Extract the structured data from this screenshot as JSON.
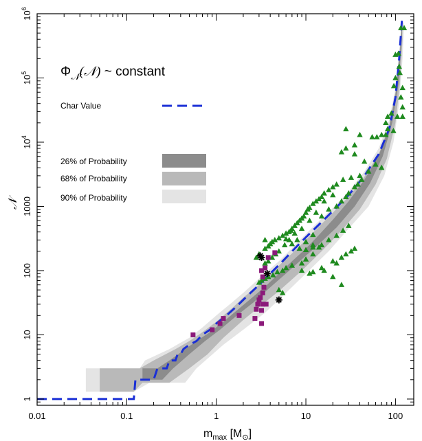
{
  "chart_data": {
    "type": "scatter",
    "title": "",
    "xlabel_main": "m",
    "xlabel_sub": "max",
    "xlabel_unit": "[M",
    "xlabel_unit_sub": "⊙",
    "xlabel_close": "]",
    "ylabel": "𝒩",
    "xscale": "log",
    "yscale": "log",
    "xlim": [
      0.01,
      160
    ],
    "ylim": [
      0.8,
      1000000
    ],
    "grid": false,
    "xticks": [
      {
        "value": 0.01,
        "label": "0.01"
      },
      {
        "value": 0.1,
        "label": "0.1"
      },
      {
        "value": 1,
        "label": "1"
      },
      {
        "value": 10,
        "label": "10"
      },
      {
        "value": 100,
        "label": "100"
      }
    ],
    "yticks": [
      {
        "value": 1,
        "label": "1",
        "sup": ""
      },
      {
        "value": 10,
        "label": "10",
        "sup": ""
      },
      {
        "value": 100,
        "label": "100",
        "sup": ""
      },
      {
        "value": 1000,
        "label": "1000",
        "sup": ""
      },
      {
        "value": 10000,
        "label": "10",
        "sup": "4"
      },
      {
        "value": 100000,
        "label": "10",
        "sup": "5"
      },
      {
        "value": 1000000,
        "label": "10",
        "sup": "6"
      }
    ],
    "annotation": {
      "phi": "Φ",
      "sub": "𝒩",
      "arg": "(𝒩)",
      "rest": " ~ constant"
    },
    "legend": {
      "char_value": "Char Value",
      "bands": [
        {
          "label": "26% of Probability",
          "color": "#8c8c8c"
        },
        {
          "label": "68% of Probability",
          "color": "#b9b9b9"
        },
        {
          "label": "90% of Probability",
          "color": "#e4e4e4"
        }
      ]
    },
    "colors": {
      "char_line": "#1a2fd6",
      "triangles": "#1f8a1f",
      "squares": "#8b1a7a",
      "stars": "#000000"
    },
    "char_value_curve": [
      [
        0.01,
        1
      ],
      [
        0.12,
        1
      ],
      [
        0.125,
        2
      ],
      [
        0.2,
        2
      ],
      [
        0.22,
        3
      ],
      [
        0.28,
        3
      ],
      [
        0.3,
        4
      ],
      [
        0.35,
        4
      ],
      [
        0.37,
        5
      ],
      [
        0.4,
        5
      ],
      [
        0.43,
        6
      ],
      [
        0.5,
        7
      ],
      [
        0.6,
        8
      ],
      [
        0.7,
        10
      ],
      [
        0.85,
        12
      ],
      [
        1,
        15
      ],
      [
        1.3,
        20
      ],
      [
        1.7,
        28
      ],
      [
        2.2,
        40
      ],
      [
        3,
        60
      ],
      [
        4,
        90
      ],
      [
        5.5,
        140
      ],
      [
        7.5,
        220
      ],
      [
        10,
        330
      ],
      [
        14,
        520
      ],
      [
        20,
        850
      ],
      [
        30,
        1500
      ],
      [
        45,
        3000
      ],
      [
        65,
        6500
      ],
      [
        85,
        16000
      ],
      [
        100,
        50000
      ],
      [
        110,
        200000
      ],
      [
        118,
        800000
      ]
    ],
    "band_90": [
      [
        0.035,
        3
      ],
      [
        0.14,
        3
      ],
      [
        0.16,
        4
      ],
      [
        0.3,
        6
      ],
      [
        0.5,
        9
      ],
      [
        0.7,
        13
      ],
      [
        1,
        20
      ],
      [
        1.5,
        32
      ],
      [
        2,
        45
      ],
      [
        3,
        75
      ],
      [
        5,
        140
      ],
      [
        8,
        270
      ],
      [
        12,
        480
      ],
      [
        20,
        950
      ],
      [
        30,
        1700
      ],
      [
        45,
        3500
      ],
      [
        65,
        8000
      ],
      [
        85,
        22000
      ],
      [
        100,
        70000
      ],
      [
        110,
        250000
      ],
      [
        118,
        800000
      ],
      [
        125,
        700000
      ],
      [
        120,
        200000
      ],
      [
        110,
        40000
      ],
      [
        95,
        10000
      ],
      [
        75,
        3000
      ],
      [
        50,
        1000
      ],
      [
        30,
        450
      ],
      [
        18,
        200
      ],
      [
        10,
        90
      ],
      [
        6,
        45
      ],
      [
        3.5,
        22
      ],
      [
        2,
        12
      ],
      [
        1.2,
        7
      ],
      [
        0.6,
        3
      ],
      [
        0.45,
        1.8
      ],
      [
        0.18,
        1.8
      ],
      [
        0.12,
        1.3
      ],
      [
        0.035,
        1.3
      ]
    ],
    "band_68": [
      [
        0.05,
        3
      ],
      [
        0.14,
        3
      ],
      [
        0.2,
        4
      ],
      [
        0.35,
        6
      ],
      [
        0.5,
        8
      ],
      [
        0.7,
        11
      ],
      [
        1,
        16
      ],
      [
        1.5,
        26
      ],
      [
        2,
        38
      ],
      [
        3,
        60
      ],
      [
        5,
        120
      ],
      [
        8,
        220
      ],
      [
        12,
        390
      ],
      [
        20,
        800
      ],
      [
        30,
        1400
      ],
      [
        45,
        2900
      ],
      [
        65,
        6500
      ],
      [
        85,
        18000
      ],
      [
        100,
        60000
      ],
      [
        112,
        300000
      ],
      [
        118,
        800000
      ],
      [
        120,
        400000
      ],
      [
        112,
        80000
      ],
      [
        100,
        20000
      ],
      [
        80,
        5500
      ],
      [
        60,
        2200
      ],
      [
        40,
        900
      ],
      [
        25,
        420
      ],
      [
        15,
        200
      ],
      [
        9,
        100
      ],
      [
        5,
        48
      ],
      [
        3,
        27
      ],
      [
        2,
        17
      ],
      [
        1.2,
        9
      ],
      [
        0.8,
        5
      ],
      [
        0.5,
        3
      ],
      [
        0.3,
        1.8
      ],
      [
        0.15,
        1.8
      ],
      [
        0.12,
        1.3
      ],
      [
        0.05,
        1.3
      ]
    ],
    "band_26": [
      [
        0.15,
        3
      ],
      [
        0.22,
        3
      ],
      [
        0.3,
        4
      ],
      [
        0.45,
        6
      ],
      [
        0.6,
        8
      ],
      [
        0.85,
        11
      ],
      [
        1.2,
        16
      ],
      [
        1.7,
        24
      ],
      [
        2.4,
        36
      ],
      [
        3.5,
        56
      ],
      [
        5,
        90
      ],
      [
        7,
        140
      ],
      [
        10,
        220
      ],
      [
        14,
        360
      ],
      [
        20,
        620
      ],
      [
        30,
        1200
      ],
      [
        45,
        2600
      ],
      [
        65,
        6200
      ],
      [
        85,
        17000
      ],
      [
        100,
        55000
      ],
      [
        112,
        250000
      ],
      [
        118,
        800000
      ],
      [
        119,
        500000
      ],
      [
        108,
        80000
      ],
      [
        92,
        20000
      ],
      [
        72,
        6000
      ],
      [
        52,
        2300
      ],
      [
        35,
        1000
      ],
      [
        22,
        470
      ],
      [
        14,
        260
      ],
      [
        9,
        150
      ],
      [
        6,
        90
      ],
      [
        4,
        55
      ],
      [
        2.6,
        32
      ],
      [
        1.7,
        20
      ],
      [
        1.1,
        12
      ],
      [
        0.75,
        8
      ],
      [
        0.5,
        5
      ],
      [
        0.33,
        3
      ],
      [
        0.25,
        2
      ],
      [
        0.15,
        2
      ]
    ],
    "series": [
      {
        "name": "",
        "marker": "triangle",
        "color": "#1f8a1f",
        "points": [
          [
            115,
            600000
          ],
          [
            125,
            600000
          ],
          [
            100,
            230000
          ],
          [
            108,
            240000
          ],
          [
            110,
            150000
          ],
          [
            112,
            120000
          ],
          [
            100,
            100000
          ],
          [
            96,
            75000
          ],
          [
            120,
            70000
          ],
          [
            115,
            50000
          ],
          [
            120,
            35000
          ],
          [
            120,
            25000
          ],
          [
            105,
            25000
          ],
          [
            90,
            28000
          ],
          [
            82,
            25000
          ],
          [
            78,
            20000
          ],
          [
            82,
            16000
          ],
          [
            95,
            15000
          ],
          [
            78,
            13000
          ],
          [
            70,
            13000
          ],
          [
            62,
            12000
          ],
          [
            55,
            12000
          ],
          [
            40,
            13000
          ],
          [
            28,
            16000
          ],
          [
            35,
            9000
          ],
          [
            28,
            8000
          ],
          [
            25,
            7000
          ],
          [
            35,
            6500
          ],
          [
            45,
            5000
          ],
          [
            60,
            4500
          ],
          [
            70,
            4000
          ],
          [
            50,
            3500
          ],
          [
            40,
            3000
          ],
          [
            32,
            2800
          ],
          [
            26,
            2600
          ],
          [
            22,
            2200
          ],
          [
            20,
            2000
          ],
          [
            18,
            1800
          ],
          [
            16,
            1600
          ],
          [
            15,
            1400
          ],
          [
            14,
            1300
          ],
          [
            13,
            1200
          ],
          [
            12,
            1100
          ],
          [
            11,
            950
          ],
          [
            10.5,
            900
          ],
          [
            10,
            800
          ],
          [
            9.5,
            700
          ],
          [
            9,
            650
          ],
          [
            8.5,
            600
          ],
          [
            8,
            550
          ],
          [
            7.5,
            500
          ],
          [
            7,
            450
          ],
          [
            6.8,
            420
          ],
          [
            6.5,
            400
          ],
          [
            6,
            380
          ],
          [
            5.5,
            350
          ],
          [
            5,
            320
          ],
          [
            4.5,
            300
          ],
          [
            4.2,
            280
          ],
          [
            4,
            260
          ],
          [
            3.8,
            240
          ],
          [
            3.5,
            220
          ],
          [
            15,
            700
          ],
          [
            18,
            900
          ],
          [
            22,
            1000
          ],
          [
            25,
            1200
          ],
          [
            28,
            1400
          ],
          [
            30,
            1600
          ],
          [
            35,
            2000
          ],
          [
            38,
            2200
          ],
          [
            42,
            2600
          ],
          [
            20,
            1500
          ],
          [
            16,
            1200
          ],
          [
            13,
            800
          ],
          [
            11,
            600
          ],
          [
            9,
            450
          ],
          [
            7.5,
            380
          ],
          [
            6.5,
            300
          ],
          [
            5.8,
            250
          ],
          [
            5,
            200
          ],
          [
            4.6,
            180
          ],
          [
            4.2,
            160
          ],
          [
            3.8,
            140
          ],
          [
            3.5,
            130
          ],
          [
            6,
            310
          ],
          [
            8,
            300
          ],
          [
            10,
            280
          ],
          [
            12,
            250
          ],
          [
            14,
            230
          ],
          [
            12,
            180
          ],
          [
            10,
            150
          ],
          [
            9,
            130
          ],
          [
            7,
            120
          ],
          [
            6,
            110
          ],
          [
            5.5,
            100
          ],
          [
            4.8,
            95
          ],
          [
            4.3,
            85
          ],
          [
            3.8,
            80
          ],
          [
            3.5,
            75
          ],
          [
            3.2,
            70
          ],
          [
            3,
            65
          ],
          [
            2.8,
            160
          ],
          [
            3,
            180
          ],
          [
            9,
            100
          ],
          [
            11,
            90
          ],
          [
            12,
            95
          ],
          [
            15,
            110
          ],
          [
            16,
            100
          ],
          [
            20,
            140
          ],
          [
            22,
            130
          ],
          [
            25,
            160
          ],
          [
            28,
            180
          ],
          [
            32,
            200
          ],
          [
            35,
            220
          ],
          [
            20,
            80
          ],
          [
            25,
            60
          ],
          [
            5.5,
            45
          ],
          [
            3.5,
            300
          ],
          [
            7,
            260
          ],
          [
            8.5,
            220
          ],
          [
            10,
            210
          ],
          [
            12,
            230
          ],
          [
            15,
            250
          ],
          [
            18,
            300
          ],
          [
            22,
            350
          ],
          [
            26,
            420
          ],
          [
            30,
            500
          ],
          [
            12,
            360
          ],
          [
            5,
            50
          ]
        ]
      },
      {
        "name": "",
        "marker": "square",
        "color": "#8b1a7a",
        "points": [
          [
            0.55,
            10
          ],
          [
            0.9,
            12
          ],
          [
            1.1,
            15
          ],
          [
            1.2,
            18
          ],
          [
            1.8,
            20
          ],
          [
            2.8,
            25
          ],
          [
            3.2,
            24
          ],
          [
            3.3,
            30
          ],
          [
            3.6,
            30
          ],
          [
            2.9,
            30
          ],
          [
            3.0,
            35
          ],
          [
            3.1,
            38
          ],
          [
            3.3,
            45
          ],
          [
            3.4,
            55
          ],
          [
            3.5,
            110
          ],
          [
            3.2,
            100
          ],
          [
            3.8,
            160
          ],
          [
            4.5,
            190
          ],
          [
            3.3,
            80
          ],
          [
            2.7,
            18
          ],
          [
            3.2,
            15
          ]
        ]
      },
      {
        "name": "",
        "marker": "star",
        "color": "#000000",
        "points": [
          [
            3.1,
            170
          ],
          [
            3.2,
            160
          ],
          [
            3.7,
            90
          ],
          [
            5,
            35
          ]
        ]
      }
    ]
  }
}
